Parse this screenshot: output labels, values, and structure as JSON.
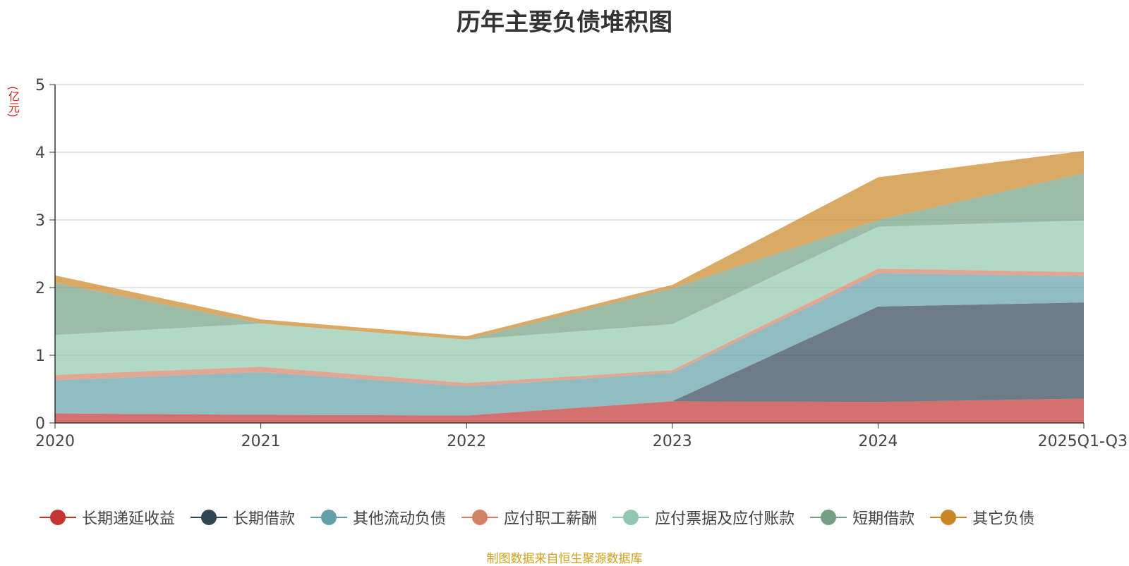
{
  "chart_data": {
    "type": "area",
    "stacked": true,
    "title": "历年主要负债堆积图",
    "unit_label": "(亿元)",
    "categories": [
      "2020",
      "2021",
      "2022",
      "2023",
      "2024",
      "2025Q1-Q3"
    ],
    "ylim": [
      0,
      5
    ],
    "yticks": [
      "0",
      "1",
      "2",
      "3",
      "4",
      "5"
    ],
    "grid": true,
    "legend_position": "bottom",
    "series": [
      {
        "name": "长期递延收益",
        "color": "#c23531",
        "values": [
          0.14,
          0.12,
          0.11,
          0.32,
          0.31,
          0.36
        ]
      },
      {
        "name": "长期借款",
        "color": "#2f4554",
        "values": [
          0.0,
          0.0,
          0.0,
          0.0,
          1.41,
          1.42
        ]
      },
      {
        "name": "其他流动负债",
        "color": "#61a0a8",
        "values": [
          0.49,
          0.63,
          0.43,
          0.42,
          0.49,
          0.39
        ]
      },
      {
        "name": "应付职工薪酬",
        "color": "#d48265",
        "values": [
          0.08,
          0.08,
          0.05,
          0.04,
          0.07,
          0.06
        ]
      },
      {
        "name": "应付票据及应付账款",
        "color": "#91c7ae",
        "values": [
          0.59,
          0.64,
          0.64,
          0.68,
          0.62,
          0.76
        ]
      },
      {
        "name": "短期借款",
        "color": "#749f83",
        "values": [
          0.77,
          0.0,
          0.0,
          0.53,
          0.1,
          0.7
        ]
      },
      {
        "name": "其它负债",
        "color": "#ca8622",
        "values": [
          0.11,
          0.06,
          0.05,
          0.05,
          0.63,
          0.33
        ]
      }
    ]
  },
  "source_note": "制图数据来自恒生聚源数据库"
}
